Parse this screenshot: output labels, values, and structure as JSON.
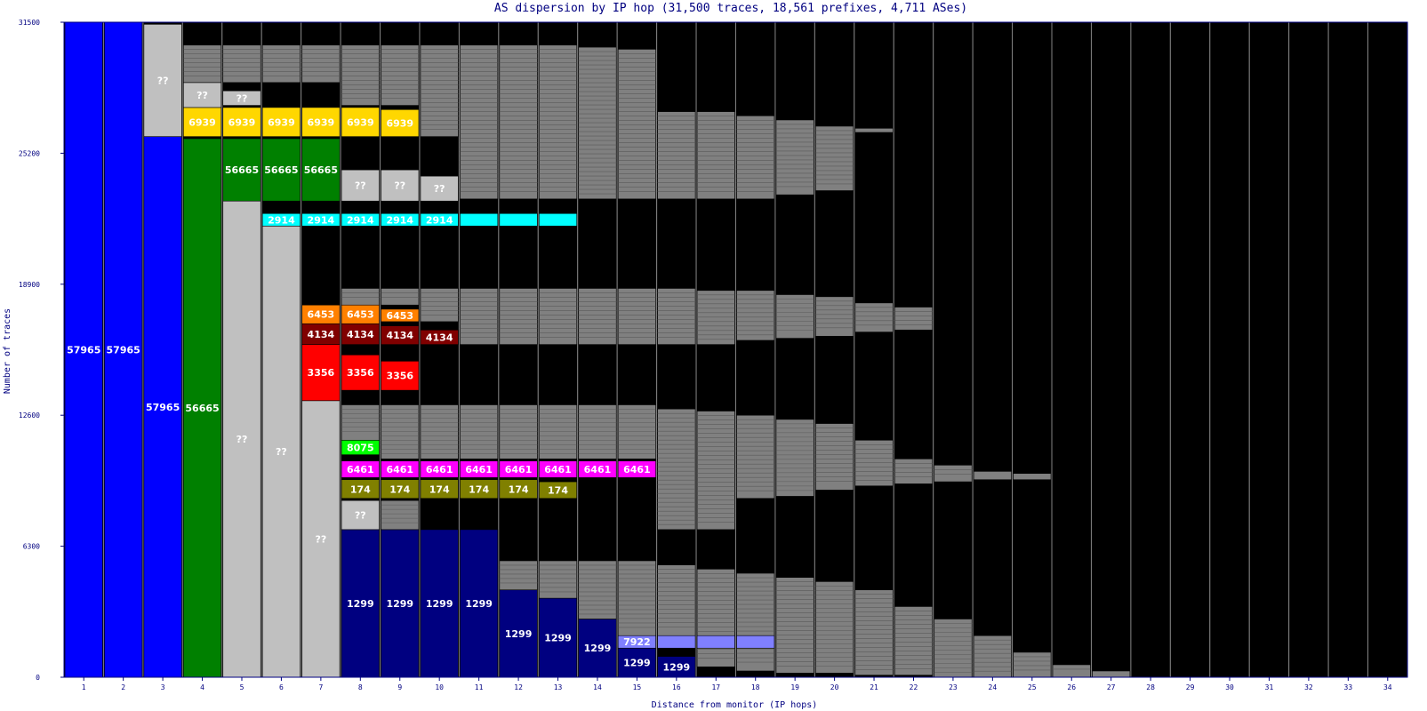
{
  "chart_data": {
    "type": "bar",
    "title": "AS dispersion by IP hop (31,500 traces, 18,561 prefixes, 4,711 ASes)",
    "xlabel": "Distance from monitor (IP hops)",
    "ylabel": "Number of traces",
    "ylim": [
      0,
      31500
    ],
    "yticks": [
      "0",
      "6300",
      "12600",
      "18900",
      "25200",
      "31500"
    ],
    "categories": [
      "1",
      "2",
      "3",
      "4",
      "5",
      "6",
      "7",
      "8",
      "9",
      "10",
      "11",
      "12",
      "13",
      "14",
      "15",
      "16",
      "17",
      "18",
      "19",
      "20",
      "21",
      "22",
      "23",
      "24",
      "25",
      "26",
      "27",
      "28",
      "29",
      "30",
      "31",
      "32",
      "33",
      "34"
    ],
    "totals": [
      31500,
      31500,
      31500,
      31500,
      31500,
      31500,
      31500,
      31500,
      31500,
      31500,
      31500,
      31500,
      31500,
      31500,
      31500,
      31500,
      31500,
      31500,
      31500,
      31500,
      31500,
      31500,
      31500,
      31500,
      31500,
      31500,
      31500,
      31500,
      31500,
      31500,
      31500,
      31500,
      31500,
      31500
    ],
    "colors": {
      "57965": "#0000ff",
      "56665": "#008000",
      "6939": "#ffd700",
      "2914": "#00ffff",
      "6453": "#ff8000",
      "4134": "#800000",
      "3356": "#ff0000",
      "8075": "#00ff00",
      "6461": "#ff00ff",
      "174": "#808000",
      "1299": "#000080",
      "7922": "#8080ff",
      "unknown": "#c0c0c0",
      "other": "#808080",
      "none": "#000000"
    },
    "segments": [
      {
        "hop": 1,
        "as": "57965",
        "y0": 0,
        "y1": 31500,
        "label": "57965"
      },
      {
        "hop": 2,
        "as": "57965",
        "y0": 0,
        "y1": 31500,
        "label": "57965"
      },
      {
        "hop": 3,
        "as": "57965",
        "y0": 0,
        "y1": 26000,
        "label": "57965"
      },
      {
        "hop": 3,
        "as": "unknown",
        "y0": 26000,
        "y1": 31400,
        "label": "??"
      },
      {
        "hop": 4,
        "as": "56665",
        "y0": 0,
        "y1": 25900,
        "label": "56665"
      },
      {
        "hop": 4,
        "as": "6939",
        "y0": 26000,
        "y1": 27400,
        "label": "6939"
      },
      {
        "hop": 4,
        "as": "unknown",
        "y0": 27400,
        "y1": 28600,
        "label": "??"
      },
      {
        "hop": 4,
        "as": "other",
        "y0": 28600,
        "y1": 30400,
        "label": ""
      },
      {
        "hop": 5,
        "as": "unknown",
        "y0": 0,
        "y1": 22900,
        "label": "??"
      },
      {
        "hop": 5,
        "as": "56665",
        "y0": 22900,
        "y1": 25900,
        "label": "56665"
      },
      {
        "hop": 5,
        "as": "6939",
        "y0": 26000,
        "y1": 27400,
        "label": "6939"
      },
      {
        "hop": 5,
        "as": "unknown",
        "y0": 27500,
        "y1": 28200,
        "label": "??"
      },
      {
        "hop": 5,
        "as": "other",
        "y0": 28600,
        "y1": 30400,
        "label": ""
      },
      {
        "hop": 6,
        "as": "unknown",
        "y0": 0,
        "y1": 21700,
        "label": "??"
      },
      {
        "hop": 6,
        "as": "2914",
        "y0": 21700,
        "y1": 22300,
        "label": "2914"
      },
      {
        "hop": 6,
        "as": "56665",
        "y0": 22900,
        "y1": 25900,
        "label": "56665"
      },
      {
        "hop": 6,
        "as": "6939",
        "y0": 26000,
        "y1": 27400,
        "label": "6939"
      },
      {
        "hop": 6,
        "as": "other",
        "y0": 28600,
        "y1": 30400,
        "label": ""
      },
      {
        "hop": 7,
        "as": "unknown",
        "y0": 0,
        "y1": 13300,
        "label": "??"
      },
      {
        "hop": 7,
        "as": "3356",
        "y0": 13300,
        "y1": 16000,
        "label": "3356"
      },
      {
        "hop": 7,
        "as": "4134",
        "y0": 16000,
        "y1": 17000,
        "label": "4134"
      },
      {
        "hop": 7,
        "as": "6453",
        "y0": 17000,
        "y1": 17900,
        "label": "6453"
      },
      {
        "hop": 7,
        "as": "2914",
        "y0": 21700,
        "y1": 22300,
        "label": "2914"
      },
      {
        "hop": 7,
        "as": "56665",
        "y0": 22900,
        "y1": 25900,
        "label": "56665"
      },
      {
        "hop": 7,
        "as": "6939",
        "y0": 26000,
        "y1": 27400,
        "label": "6939"
      },
      {
        "hop": 7,
        "as": "other",
        "y0": 28600,
        "y1": 30400,
        "label": ""
      },
      {
        "hop": 8,
        "as": "1299",
        "y0": 0,
        "y1": 7100,
        "label": "1299"
      },
      {
        "hop": 8,
        "as": "unknown",
        "y0": 7100,
        "y1": 8500,
        "label": "??"
      },
      {
        "hop": 8,
        "as": "174",
        "y0": 8600,
        "y1": 9500,
        "label": "174"
      },
      {
        "hop": 8,
        "as": "6461",
        "y0": 9600,
        "y1": 10400,
        "label": "6461"
      },
      {
        "hop": 8,
        "as": "8075",
        "y0": 10700,
        "y1": 11400,
        "label": "8075"
      },
      {
        "hop": 8,
        "as": "other",
        "y0": 11400,
        "y1": 13100,
        "label": ""
      },
      {
        "hop": 8,
        "as": "3356",
        "y0": 13800,
        "y1": 15500,
        "label": "3356"
      },
      {
        "hop": 8,
        "as": "4134",
        "y0": 16000,
        "y1": 17000,
        "label": "4134"
      },
      {
        "hop": 8,
        "as": "6453",
        "y0": 17000,
        "y1": 17900,
        "label": "6453"
      },
      {
        "hop": 8,
        "as": "other",
        "y0": 17900,
        "y1": 18700,
        "label": ""
      },
      {
        "hop": 8,
        "as": "2914",
        "y0": 21700,
        "y1": 22300,
        "label": "2914"
      },
      {
        "hop": 8,
        "as": "unknown",
        "y0": 22900,
        "y1": 24400,
        "label": "??"
      },
      {
        "hop": 8,
        "as": "6939",
        "y0": 26000,
        "y1": 27400,
        "label": "6939"
      },
      {
        "hop": 8,
        "as": "other",
        "y0": 27500,
        "y1": 30400,
        "label": ""
      },
      {
        "hop": 9,
        "as": "1299",
        "y0": 0,
        "y1": 7100,
        "label": "1299"
      },
      {
        "hop": 9,
        "as": "other",
        "y0": 7100,
        "y1": 8500,
        "label": ""
      },
      {
        "hop": 9,
        "as": "174",
        "y0": 8600,
        "y1": 9500,
        "label": "174"
      },
      {
        "hop": 9,
        "as": "6461",
        "y0": 9600,
        "y1": 10400,
        "label": "6461"
      },
      {
        "hop": 9,
        "as": "other",
        "y0": 10500,
        "y1": 13100,
        "label": ""
      },
      {
        "hop": 9,
        "as": "3356",
        "y0": 13800,
        "y1": 15200,
        "label": "3356"
      },
      {
        "hop": 9,
        "as": "4134",
        "y0": 16000,
        "y1": 16900,
        "label": "4134"
      },
      {
        "hop": 9,
        "as": "6453",
        "y0": 17100,
        "y1": 17700,
        "label": "6453"
      },
      {
        "hop": 9,
        "as": "other",
        "y0": 17900,
        "y1": 18700,
        "label": ""
      },
      {
        "hop": 9,
        "as": "2914",
        "y0": 21700,
        "y1": 22300,
        "label": "2914"
      },
      {
        "hop": 9,
        "as": "unknown",
        "y0": 22900,
        "y1": 24400,
        "label": "??"
      },
      {
        "hop": 9,
        "as": "6939",
        "y0": 26000,
        "y1": 27300,
        "label": "6939"
      },
      {
        "hop": 9,
        "as": "other",
        "y0": 27500,
        "y1": 30400,
        "label": ""
      },
      {
        "hop": 10,
        "as": "1299",
        "y0": 0,
        "y1": 7100,
        "label": "1299"
      },
      {
        "hop": 10,
        "as": "174",
        "y0": 8600,
        "y1": 9500,
        "label": "174"
      },
      {
        "hop": 10,
        "as": "6461",
        "y0": 9600,
        "y1": 10400,
        "label": "6461"
      },
      {
        "hop": 10,
        "as": "other",
        "y0": 10500,
        "y1": 13100,
        "label": ""
      },
      {
        "hop": 10,
        "as": "4134",
        "y0": 16000,
        "y1": 16700,
        "label": "4134"
      },
      {
        "hop": 10,
        "as": "other",
        "y0": 17100,
        "y1": 18700,
        "label": ""
      },
      {
        "hop": 10,
        "as": "2914",
        "y0": 21700,
        "y1": 22300,
        "label": "2914"
      },
      {
        "hop": 10,
        "as": "unknown",
        "y0": 22900,
        "y1": 24100,
        "label": "??"
      },
      {
        "hop": 10,
        "as": "other",
        "y0": 26000,
        "y1": 30400,
        "label": ""
      },
      {
        "hop": 11,
        "as": "1299",
        "y0": 0,
        "y1": 7100,
        "label": "1299"
      },
      {
        "hop": 11,
        "as": "174",
        "y0": 8600,
        "y1": 9500,
        "label": "174"
      },
      {
        "hop": 11,
        "as": "6461",
        "y0": 9600,
        "y1": 10400,
        "label": "6461"
      },
      {
        "hop": 11,
        "as": "other",
        "y0": 10500,
        "y1": 13100,
        "label": ""
      },
      {
        "hop": 11,
        "as": "other",
        "y0": 16000,
        "y1": 18700,
        "label": ""
      },
      {
        "hop": 11,
        "as": "2914",
        "y0": 21700,
        "y1": 22300,
        "label": ""
      },
      {
        "hop": 11,
        "as": "other",
        "y0": 23000,
        "y1": 30400,
        "label": ""
      },
      {
        "hop": 12,
        "as": "1299",
        "y0": 0,
        "y1": 4200,
        "label": "1299"
      },
      {
        "hop": 12,
        "as": "other",
        "y0": 4200,
        "y1": 5600,
        "label": ""
      },
      {
        "hop": 12,
        "as": "174",
        "y0": 8600,
        "y1": 9500,
        "label": "174"
      },
      {
        "hop": 12,
        "as": "6461",
        "y0": 9600,
        "y1": 10400,
        "label": "6461"
      },
      {
        "hop": 12,
        "as": "other",
        "y0": 10500,
        "y1": 13100,
        "label": ""
      },
      {
        "hop": 12,
        "as": "other",
        "y0": 16000,
        "y1": 18700,
        "label": ""
      },
      {
        "hop": 12,
        "as": "2914",
        "y0": 21700,
        "y1": 22300,
        "label": ""
      },
      {
        "hop": 12,
        "as": "other",
        "y0": 23000,
        "y1": 30400,
        "label": ""
      },
      {
        "hop": 13,
        "as": "1299",
        "y0": 0,
        "y1": 3800,
        "label": "1299"
      },
      {
        "hop": 13,
        "as": "other",
        "y0": 3800,
        "y1": 5600,
        "label": ""
      },
      {
        "hop": 13,
        "as": "174",
        "y0": 8600,
        "y1": 9400,
        "label": "174"
      },
      {
        "hop": 13,
        "as": "6461",
        "y0": 9600,
        "y1": 10400,
        "label": "6461"
      },
      {
        "hop": 13,
        "as": "other",
        "y0": 10500,
        "y1": 13100,
        "label": ""
      },
      {
        "hop": 13,
        "as": "other",
        "y0": 16000,
        "y1": 18700,
        "label": ""
      },
      {
        "hop": 13,
        "as": "2914",
        "y0": 21700,
        "y1": 22300,
        "label": ""
      },
      {
        "hop": 13,
        "as": "other",
        "y0": 23000,
        "y1": 30400,
        "label": ""
      },
      {
        "hop": 14,
        "as": "1299",
        "y0": 0,
        "y1": 2800,
        "label": "1299"
      },
      {
        "hop": 14,
        "as": "other",
        "y0": 2800,
        "y1": 5600,
        "label": ""
      },
      {
        "hop": 14,
        "as": "6461",
        "y0": 9600,
        "y1": 10400,
        "label": "6461"
      },
      {
        "hop": 14,
        "as": "other",
        "y0": 10500,
        "y1": 13100,
        "label": ""
      },
      {
        "hop": 14,
        "as": "other",
        "y0": 16000,
        "y1": 18700,
        "label": ""
      },
      {
        "hop": 14,
        "as": "other",
        "y0": 23000,
        "y1": 30300,
        "label": ""
      },
      {
        "hop": 15,
        "as": "1299",
        "y0": 0,
        "y1": 1400,
        "label": "1299"
      },
      {
        "hop": 15,
        "as": "7922",
        "y0": 1400,
        "y1": 2000,
        "label": "7922"
      },
      {
        "hop": 15,
        "as": "other",
        "y0": 2000,
        "y1": 5600,
        "label": ""
      },
      {
        "hop": 15,
        "as": "6461",
        "y0": 9600,
        "y1": 10400,
        "label": "6461"
      },
      {
        "hop": 15,
        "as": "other",
        "y0": 10500,
        "y1": 13100,
        "label": ""
      },
      {
        "hop": 15,
        "as": "other",
        "y0": 16000,
        "y1": 18700,
        "label": ""
      },
      {
        "hop": 15,
        "as": "other",
        "y0": 23000,
        "y1": 30200,
        "label": ""
      },
      {
        "hop": 16,
        "as": "1299",
        "y0": 0,
        "y1": 1000,
        "label": "1299"
      },
      {
        "hop": 16,
        "as": "7922",
        "y0": 1400,
        "y1": 2000,
        "label": ""
      },
      {
        "hop": 16,
        "as": "other",
        "y0": 2000,
        "y1": 5400,
        "label": ""
      },
      {
        "hop": 16,
        "as": "other",
        "y0": 7100,
        "y1": 12900,
        "label": ""
      },
      {
        "hop": 16,
        "as": "other",
        "y0": 16000,
        "y1": 18700,
        "label": ""
      },
      {
        "hop": 16,
        "as": "other",
        "y0": 23000,
        "y1": 27200,
        "label": ""
      },
      {
        "hop": 17,
        "as": "other",
        "y0": 500,
        "y1": 5200,
        "label": ""
      },
      {
        "hop": 17,
        "as": "7922",
        "y0": 1400,
        "y1": 2000,
        "label": ""
      },
      {
        "hop": 17,
        "as": "other",
        "y0": 7100,
        "y1": 12800,
        "label": ""
      },
      {
        "hop": 17,
        "as": "other",
        "y0": 16000,
        "y1": 18600,
        "label": ""
      },
      {
        "hop": 17,
        "as": "other",
        "y0": 23000,
        "y1": 27200,
        "label": ""
      },
      {
        "hop": 18,
        "as": "other",
        "y0": 300,
        "y1": 5000,
        "label": ""
      },
      {
        "hop": 18,
        "as": "7922",
        "y0": 1400,
        "y1": 2000,
        "label": ""
      },
      {
        "hop": 18,
        "as": "other",
        "y0": 8600,
        "y1": 12600,
        "label": ""
      },
      {
        "hop": 18,
        "as": "other",
        "y0": 16200,
        "y1": 18600,
        "label": ""
      },
      {
        "hop": 18,
        "as": "other",
        "y0": 23000,
        "y1": 27000,
        "label": ""
      },
      {
        "hop": 19,
        "as": "other",
        "y0": 200,
        "y1": 4800,
        "label": ""
      },
      {
        "hop": 19,
        "as": "other",
        "y0": 8700,
        "y1": 12400,
        "label": ""
      },
      {
        "hop": 19,
        "as": "other",
        "y0": 16300,
        "y1": 18400,
        "label": ""
      },
      {
        "hop": 19,
        "as": "other",
        "y0": 23200,
        "y1": 26800,
        "label": ""
      },
      {
        "hop": 20,
        "as": "other",
        "y0": 200,
        "y1": 4600,
        "label": ""
      },
      {
        "hop": 20,
        "as": "other",
        "y0": 9000,
        "y1": 12200,
        "label": ""
      },
      {
        "hop": 20,
        "as": "other",
        "y0": 16400,
        "y1": 18300,
        "label": ""
      },
      {
        "hop": 20,
        "as": "other",
        "y0": 23400,
        "y1": 26500,
        "label": ""
      },
      {
        "hop": 21,
        "as": "other",
        "y0": 100,
        "y1": 4200,
        "label": ""
      },
      {
        "hop": 21,
        "as": "other",
        "y0": 9200,
        "y1": 11400,
        "label": ""
      },
      {
        "hop": 21,
        "as": "other",
        "y0": 16600,
        "y1": 18000,
        "label": ""
      },
      {
        "hop": 21,
        "as": "other",
        "y0": 26200,
        "y1": 26400,
        "label": ""
      },
      {
        "hop": 22,
        "as": "other",
        "y0": 100,
        "y1": 3400,
        "label": ""
      },
      {
        "hop": 22,
        "as": "other",
        "y0": 9300,
        "y1": 10500,
        "label": ""
      },
      {
        "hop": 22,
        "as": "other",
        "y0": 16700,
        "y1": 17800,
        "label": ""
      },
      {
        "hop": 23,
        "as": "other",
        "y0": 0,
        "y1": 2800,
        "label": ""
      },
      {
        "hop": 23,
        "as": "other",
        "y0": 9400,
        "y1": 10200,
        "label": ""
      },
      {
        "hop": 24,
        "as": "other",
        "y0": 0,
        "y1": 2000,
        "label": ""
      },
      {
        "hop": 24,
        "as": "other",
        "y0": 9500,
        "y1": 9900,
        "label": ""
      },
      {
        "hop": 25,
        "as": "other",
        "y0": 0,
        "y1": 1200,
        "label": ""
      },
      {
        "hop": 25,
        "as": "other",
        "y0": 9500,
        "y1": 9800,
        "label": ""
      },
      {
        "hop": 26,
        "as": "other",
        "y0": 0,
        "y1": 600,
        "label": ""
      },
      {
        "hop": 27,
        "as": "other",
        "y0": 0,
        "y1": 300,
        "label": ""
      }
    ],
    "grid": false,
    "legend": "none"
  }
}
